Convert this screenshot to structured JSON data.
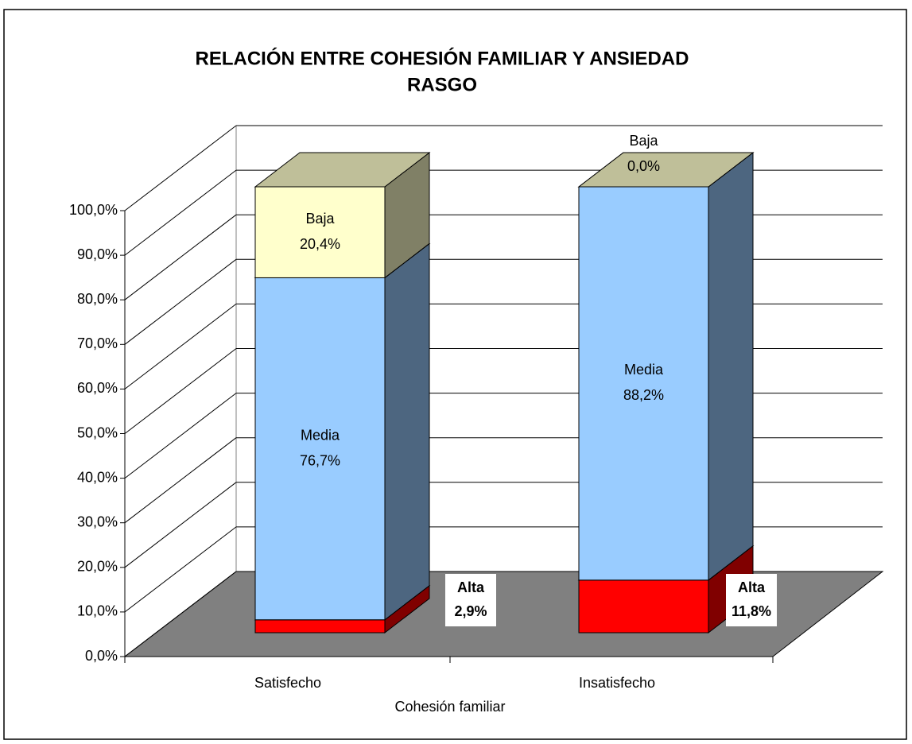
{
  "chart_data": {
    "type": "bar",
    "stacked": true,
    "title": "RELACIÓN ENTRE  COHESIÓN FAMILIAR Y ANSIEDAD RASGO",
    "x_label": "Cohesión familiar",
    "categories": [
      "Satisfecho",
      "Insatisfecho"
    ],
    "series": [
      {
        "name": "Alta",
        "color": "#ff0000",
        "values": [
          2.9,
          11.8
        ],
        "value_labels": [
          "2,9%",
          "11,8%"
        ]
      },
      {
        "name": "Media",
        "color": "#99ccff",
        "values": [
          76.7,
          88.2
        ],
        "value_labels": [
          "76,7%",
          "88,2%"
        ]
      },
      {
        "name": "Baja",
        "color": "#ffffcc",
        "values": [
          20.4,
          0.0
        ],
        "value_labels": [
          "20,4%",
          "0,0%"
        ]
      }
    ],
    "ylim": [
      0,
      100
    ],
    "yticks": [
      {
        "value": 0,
        "label": "0,0%"
      },
      {
        "value": 10,
        "label": "10,0%"
      },
      {
        "value": 20,
        "label": "20,0%"
      },
      {
        "value": 30,
        "label": "30,0%"
      },
      {
        "value": 40,
        "label": "40,0%"
      },
      {
        "value": 50,
        "label": "50,0%"
      },
      {
        "value": 60,
        "label": "60,0%"
      },
      {
        "value": 70,
        "label": "70,0%"
      },
      {
        "value": 80,
        "label": "80,0%"
      },
      {
        "value": 90,
        "label": "90,0%"
      },
      {
        "value": 100,
        "label": "100,0%"
      }
    ],
    "grid": true
  }
}
